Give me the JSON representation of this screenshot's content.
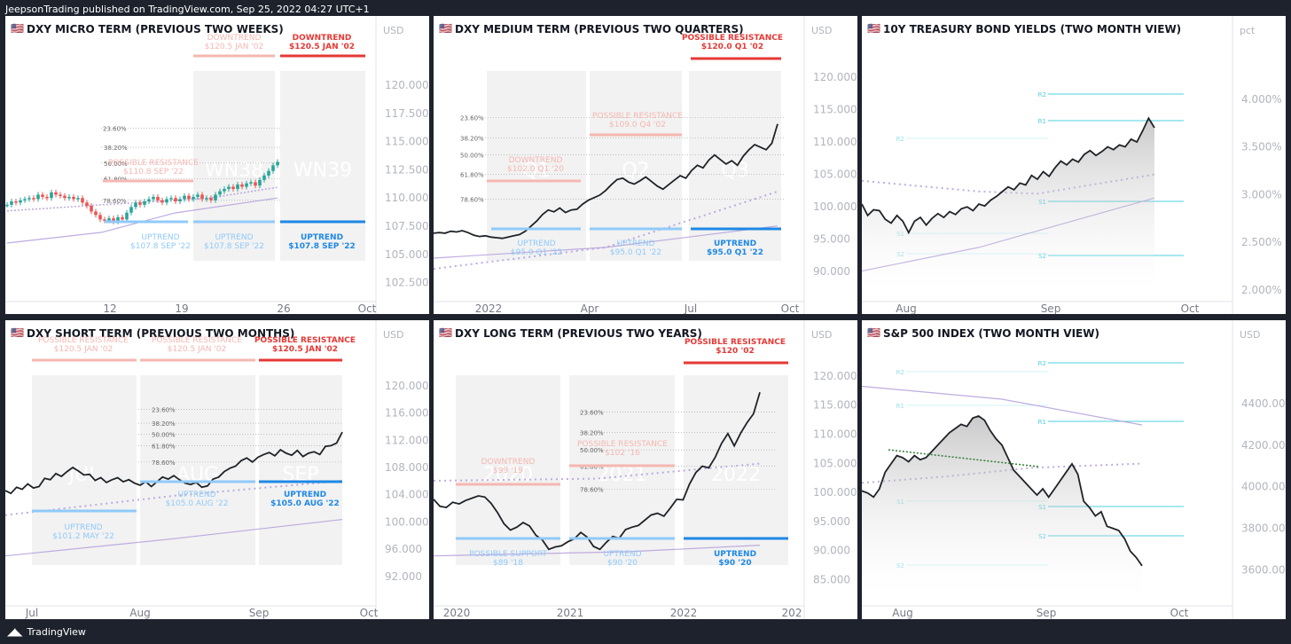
{
  "header": {
    "published": "JeepsonTrading published on TradingView.com, Sep 25, 2022 04:27 UTC+1"
  },
  "footer": {
    "brand": "TradingView"
  },
  "flag": "🇺🇸",
  "colors": {
    "line": "#1f2328",
    "red": "#e53935",
    "lightred": "#f5b7b1",
    "blue": "#1e88e5",
    "lightblue": "#90caf9",
    "purple": "#b39ddb",
    "cyan": "#4dd0e1",
    "green": "#2e7d32",
    "candle_up": "#26a69a",
    "candle_down": "#ef5350",
    "box": "#f2f2f2"
  },
  "charts": [
    {
      "id": "dxy-micro",
      "title": "DXY MICRO TERM (PREVIOUS TWO WEEKS)",
      "unit": "USD",
      "type": "candlestick",
      "y_ticks": [
        "120.000",
        "117.500",
        "115.000",
        "112.500",
        "110.000",
        "107.500",
        "105.000",
        "102.500"
      ],
      "ylim": [
        101.6,
        123.0
      ],
      "x_ticks": [
        "12",
        "19",
        "26",
        "Oct"
      ],
      "fib_levels": [
        {
          "label": "23.60%",
          "value": 116.2
        },
        {
          "label": "38.20%",
          "value": 114.5
        },
        {
          "label": "50.00%",
          "value": 113.1
        },
        {
          "label": "61.80%",
          "value": 111.7
        },
        {
          "label": "78.60%",
          "value": 109.8
        }
      ],
      "box_labels": [
        "WN38",
        "WN39"
      ],
      "annotations": [
        {
          "text": "DOWNTREND",
          "sub": "$120.5 JAN '02",
          "style": "lightred"
        },
        {
          "text": "DOWNTREND",
          "sub": "$120.5 JAN '02",
          "style": "red"
        },
        {
          "text": "POSSIBLE RESISTANCE",
          "sub": "$110.8 SEP '22",
          "style": "lightred"
        },
        {
          "text": "UPTREND",
          "sub": "$107.8 SEP '22",
          "style": "lightblue"
        },
        {
          "text": "UPTREND",
          "sub": "$107.8 SEP '22",
          "style": "lightblue"
        },
        {
          "text": "UPTREND",
          "sub": "$107.8 SEP '22",
          "style": "blue"
        }
      ],
      "series": [
        109.4,
        109.7,
        109.6,
        109.8,
        109.9,
        110.0,
        109.9,
        110.3,
        110.1,
        110.0,
        110.5,
        110.3,
        110.2,
        110.0,
        110.1,
        109.9,
        110.0,
        109.6,
        109.3,
        108.8,
        108.5,
        108.1,
        108.0,
        108.2,
        107.9,
        108.3,
        108.1,
        108.7,
        109.2,
        109.6,
        109.4,
        109.7,
        109.9,
        110.1,
        109.8,
        109.6,
        109.9,
        110.0,
        109.7,
        109.9,
        110.2,
        109.9,
        110.1,
        110.3,
        109.9,
        110.0,
        109.8,
        110.3,
        110.6,
        110.8,
        111.0,
        110.8,
        111.2,
        111.0,
        111.3,
        111.4,
        111.1,
        111.6,
        112.0,
        112.4,
        112.9,
        113.2
      ]
    },
    {
      "id": "dxy-medium",
      "title": "DXY MEDIUM TERM (PREVIOUS TWO QUARTERS)",
      "unit": "USD",
      "type": "line",
      "y_ticks": [
        "120.000",
        "115.000",
        "110.000",
        "105.000",
        "100.000",
        "95.000",
        "90.000"
      ],
      "ylim": [
        86.7,
        124.0
      ],
      "x_ticks": [
        "2022",
        "Apr",
        "Jul",
        "Oct"
      ],
      "fib_levels": [
        {
          "label": "23.60%",
          "value": 113.8
        },
        {
          "label": "38.20%",
          "value": 110.6
        },
        {
          "label": "50.00%",
          "value": 108.0
        },
        {
          "label": "61.80%",
          "value": 105.0
        },
        {
          "label": "78.60%",
          "value": 101.2
        }
      ],
      "box_labels": [
        "Q1",
        "Q2",
        "Q3"
      ],
      "annotations": [
        {
          "text": "POSSIBLE RESISTANCE",
          "sub": "$120.0 Q1 '02",
          "style": "red"
        },
        {
          "text": "POSSIBLE RESISTANCE",
          "sub": "$109.0 Q4 '02",
          "style": "lightred"
        },
        {
          "text": "DOWNTREND",
          "sub": "$102.0 Q1 '20",
          "style": "lightred"
        },
        {
          "text": "UPTREND",
          "sub": "$95.0 Q1 '22",
          "style": "lightblue"
        },
        {
          "text": "UPTREND",
          "sub": "$95.0 Q1 '22",
          "style": "lightblue"
        },
        {
          "text": "UPTREND",
          "sub": "$95.0 Q1 '22",
          "style": "blue"
        }
      ],
      "series": [
        95.9,
        96.0,
        95.9,
        96.2,
        96.1,
        96.3,
        96.0,
        95.6,
        95.4,
        95.5,
        95.3,
        95.2,
        95.1,
        95.3,
        95.5,
        95.7,
        96.2,
        97.0,
        97.8,
        98.8,
        99.5,
        99.2,
        99.8,
        99.1,
        99.5,
        99.6,
        100.4,
        101.0,
        101.4,
        101.8,
        102.5,
        103.4,
        104.2,
        104.4,
        103.8,
        103.5,
        104.0,
        104.6,
        103.9,
        103.2,
        102.7,
        103.4,
        104.1,
        104.8,
        104.4,
        105.6,
        106.4,
        106.0,
        107.2,
        108.0,
        107.3,
        106.6,
        107.1,
        106.4,
        107.8,
        108.8,
        109.6,
        109.2,
        108.8,
        109.8,
        112.8
      ]
    },
    {
      "id": "us10y",
      "title": "10Y TREASURY BOND YIELDS (TWO MONTH VIEW)",
      "unit": "pct",
      "type": "area",
      "y_ticks": [
        "4.000%",
        "3.500%",
        "3.000%",
        "2.500%",
        "2.000%"
      ],
      "ylim": [
        1.97,
        4.5
      ],
      "x_ticks": [
        "Aug",
        "Sep",
        "Oct"
      ],
      "pivots": [
        "R2",
        "R1",
        "R2",
        "S1",
        "S1",
        "S2",
        "S2"
      ],
      "series": [
        2.9,
        2.78,
        2.84,
        2.83,
        2.74,
        2.7,
        2.78,
        2.72,
        2.6,
        2.72,
        2.76,
        2.68,
        2.75,
        2.8,
        2.76,
        2.82,
        2.79,
        2.85,
        2.87,
        2.83,
        2.9,
        2.88,
        2.94,
        2.98,
        3.03,
        3.08,
        3.05,
        3.12,
        3.1,
        3.2,
        3.16,
        3.24,
        3.19,
        3.28,
        3.35,
        3.31,
        3.37,
        3.34,
        3.42,
        3.46,
        3.41,
        3.45,
        3.5,
        3.47,
        3.52,
        3.5,
        3.58,
        3.55,
        3.67,
        3.8,
        3.7
      ]
    },
    {
      "id": "dxy-short",
      "title": "DXY SHORT TERM (PREVIOUS TWO MONTHS)",
      "unit": "USD",
      "type": "line",
      "y_ticks": [
        "120.000",
        "116.000",
        "112.000",
        "108.000",
        "104.000",
        "100.000",
        "96.000",
        "92.000"
      ],
      "ylim": [
        89.0,
        124.4
      ],
      "x_ticks": [
        "Jul",
        "Aug",
        "Sep",
        "Oct"
      ],
      "fib_levels": [
        {
          "label": "23.60%",
          "value": 116.5
        },
        {
          "label": "38.20%",
          "value": 114.5
        },
        {
          "label": "50.00%",
          "value": 112.9
        },
        {
          "label": "61.80%",
          "value": 111.2
        },
        {
          "label": "78.60%",
          "value": 108.8
        }
      ],
      "box_labels": [
        "JUL",
        "AUG",
        "SEP"
      ],
      "annotations": [
        {
          "text": "POSSIBLE RESISTANCE",
          "sub": "$120.5 JAN '02",
          "style": "lightred"
        },
        {
          "text": "POSSIBLE RESISTANCE",
          "sub": "$120.5 JAN '02",
          "style": "lightred"
        },
        {
          "text": "POSSIBLE RESISTANCE",
          "sub": "$120.5 JAN '02",
          "style": "red"
        },
        {
          "text": "UPTREND",
          "sub": "$101.2 MAY '22",
          "style": "lightblue"
        },
        {
          "text": "UPTREND",
          "sub": "$105.0 AUG '22",
          "style": "lightblue"
        },
        {
          "text": "UPTREND",
          "sub": "$105.0 AUG '22",
          "style": "blue"
        }
      ],
      "series": [
        104.6,
        104.2,
        105.1,
        104.8,
        105.6,
        105.0,
        105.2,
        106.4,
        106.2,
        107.1,
        106.7,
        107.4,
        108.0,
        107.5,
        106.9,
        107.0,
        106.1,
        106.5,
        105.8,
        106.2,
        106.5,
        105.9,
        106.2,
        105.7,
        105.4,
        105.9,
        105.2,
        105.9,
        106.6,
        106.3,
        106.8,
        106.2,
        105.7,
        105.5,
        105.8,
        105.1,
        105.3,
        106.3,
        106.6,
        107.4,
        107.9,
        108.2,
        109.0,
        109.4,
        108.8,
        109.5,
        109.9,
        110.2,
        109.7,
        110.6,
        110.1,
        109.8,
        110.5,
        109.6,
        110.1,
        110.3,
        109.9,
        111.1,
        111.2,
        111.6,
        113.2
      ]
    },
    {
      "id": "dxy-long",
      "title": "DXY LONG TERM (PREVIOUS TWO YEARS)",
      "unit": "USD",
      "type": "line",
      "y_ticks": [
        "120.000",
        "115.000",
        "110.000",
        "105.000",
        "100.000",
        "95.000",
        "90.000",
        "85.000"
      ],
      "ylim": [
        82.0,
        123.5
      ],
      "x_ticks": [
        "2020",
        "2021",
        "2022",
        "202"
      ],
      "fib_levels": [
        {
          "label": "23.60%",
          "value": 113.8
        },
        {
          "label": "38.20%",
          "value": 110.3
        },
        {
          "label": "50.00%",
          "value": 107.3
        },
        {
          "label": "61.80%",
          "value": 104.5
        },
        {
          "label": "78.60%",
          "value": 100.5
        }
      ],
      "box_labels": [
        "2020",
        "2021",
        "2022"
      ],
      "annotations": [
        {
          "text": "POSSIBLE RESISTANCE",
          "sub": "$120 '02",
          "style": "red"
        },
        {
          "text": "POSSIBLE RESISTANCE",
          "sub": "$102 '16",
          "style": "lightred"
        },
        {
          "text": "DOWNTREND",
          "sub": "$99 '19",
          "style": "lightred"
        },
        {
          "text": "POSSIBLE SUPPORT",
          "sub": "$89 '18",
          "style": "lightblue"
        },
        {
          "text": "UPTREND",
          "sub": "$90 '20",
          "style": "lightblue"
        },
        {
          "text": "UPTREND",
          "sub": "$90 '20",
          "style": "blue"
        }
      ],
      "series": [
        98.8,
        97.6,
        97.4,
        98.3,
        98.0,
        98.6,
        99.0,
        99.4,
        99.2,
        98.1,
        96.5,
        94.6,
        93.5,
        94.0,
        94.8,
        94.2,
        92.6,
        91.8,
        90.2,
        90.6,
        90.8,
        91.5,
        92.0,
        93.1,
        92.3,
        90.7,
        90.2,
        91.4,
        92.4,
        92.1,
        93.6,
        94.0,
        94.3,
        95.2,
        96.1,
        96.4,
        95.9,
        97.3,
        98.8,
        98.7,
        101.4,
        103.4,
        104.5,
        104.2,
        106.0,
        108.4,
        110.1,
        108.0,
        110.2,
        112.0,
        113.5,
        117.2
      ]
    },
    {
      "id": "spx",
      "title": "S&P 500 INDEX (TWO MONTH VIEW)",
      "unit": "USD",
      "type": "area",
      "y_ticks": [
        "4400.00",
        "4200.00",
        "4000.00",
        "3800.00",
        "3600.00"
      ],
      "ylim": [
        3470,
        4630
      ],
      "x_ticks": [
        "Aug",
        "Sep",
        "Oct"
      ],
      "pivots": [
        "R2",
        "R2",
        "R1",
        "R1",
        "S1",
        "S1",
        "S2",
        "S2"
      ],
      "series": [
        3980,
        3970,
        3950,
        3990,
        4070,
        4110,
        4150,
        4140,
        4120,
        4150,
        4130,
        4140,
        4170,
        4200,
        4230,
        4260,
        4280,
        4300,
        4290,
        4330,
        4340,
        4320,
        4270,
        4230,
        4200,
        4140,
        4080,
        4050,
        4020,
        3990,
        3960,
        3990,
        3950,
        3990,
        4030,
        4070,
        4110,
        4060,
        3930,
        3900,
        3860,
        3880,
        3810,
        3800,
        3790,
        3750,
        3690,
        3660,
        3620
      ]
    }
  ]
}
